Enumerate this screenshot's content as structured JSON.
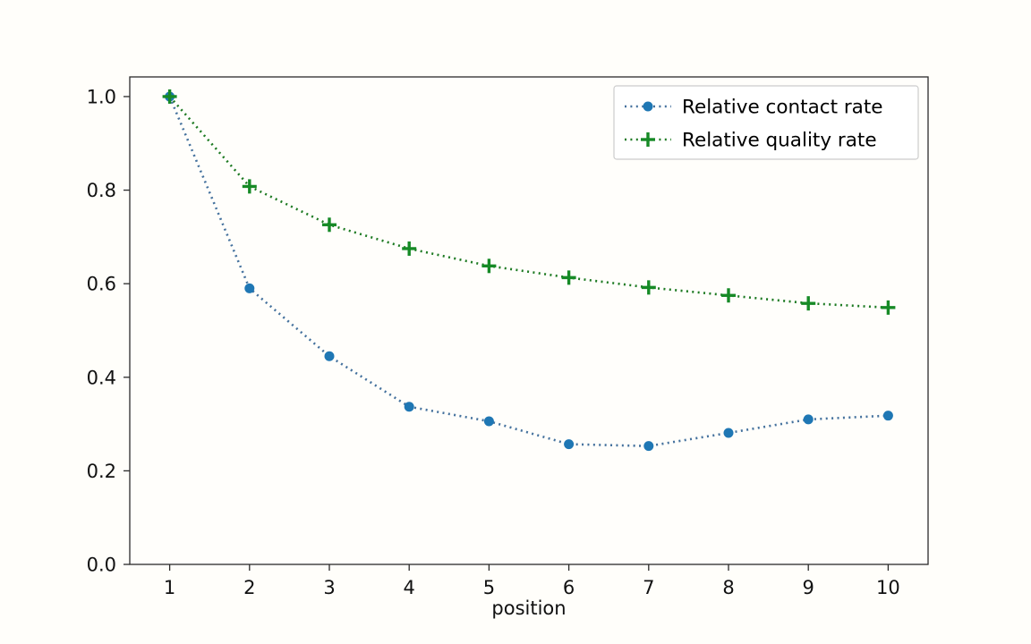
{
  "chart_data": {
    "type": "line",
    "title": "",
    "xlabel": "position",
    "ylabel": "",
    "x": [
      1,
      2,
      3,
      4,
      5,
      6,
      7,
      8,
      9,
      10
    ],
    "series": [
      {
        "name": "Relative contact rate",
        "marker": "circle",
        "marker_color": "#1f77b4",
        "line_color": "#44719d",
        "values": [
          1.0,
          0.59,
          0.445,
          0.337,
          0.306,
          0.257,
          0.253,
          0.281,
          0.31,
          0.318
        ]
      },
      {
        "name": "Relative quality rate",
        "marker": "plus",
        "marker_color": "#168a26",
        "line_color": "#1d7a22",
        "values": [
          1.0,
          0.808,
          0.726,
          0.675,
          0.638,
          0.613,
          0.592,
          0.575,
          0.558,
          0.549
        ]
      }
    ],
    "x_tick_labels": [
      "1",
      "2",
      "3",
      "4",
      "5",
      "6",
      "7",
      "8",
      "9",
      "10"
    ],
    "y_ticks": [
      0.0,
      0.2,
      0.4,
      0.6,
      0.8,
      1.0
    ],
    "y_tick_labels": [
      "0.0",
      "0.2",
      "0.4",
      "0.6",
      "0.8",
      "1.0"
    ],
    "xlim": [
      0.5,
      10.5
    ],
    "ylim": [
      0.0,
      1.042
    ],
    "grid": false,
    "legend_position": "upper right",
    "frame_color": "#2b2b2b",
    "tick_label_color": "#111111",
    "legend_border_color": "#cccccc",
    "legend_background": "#ffffff",
    "plot_background": "#fffefb"
  }
}
